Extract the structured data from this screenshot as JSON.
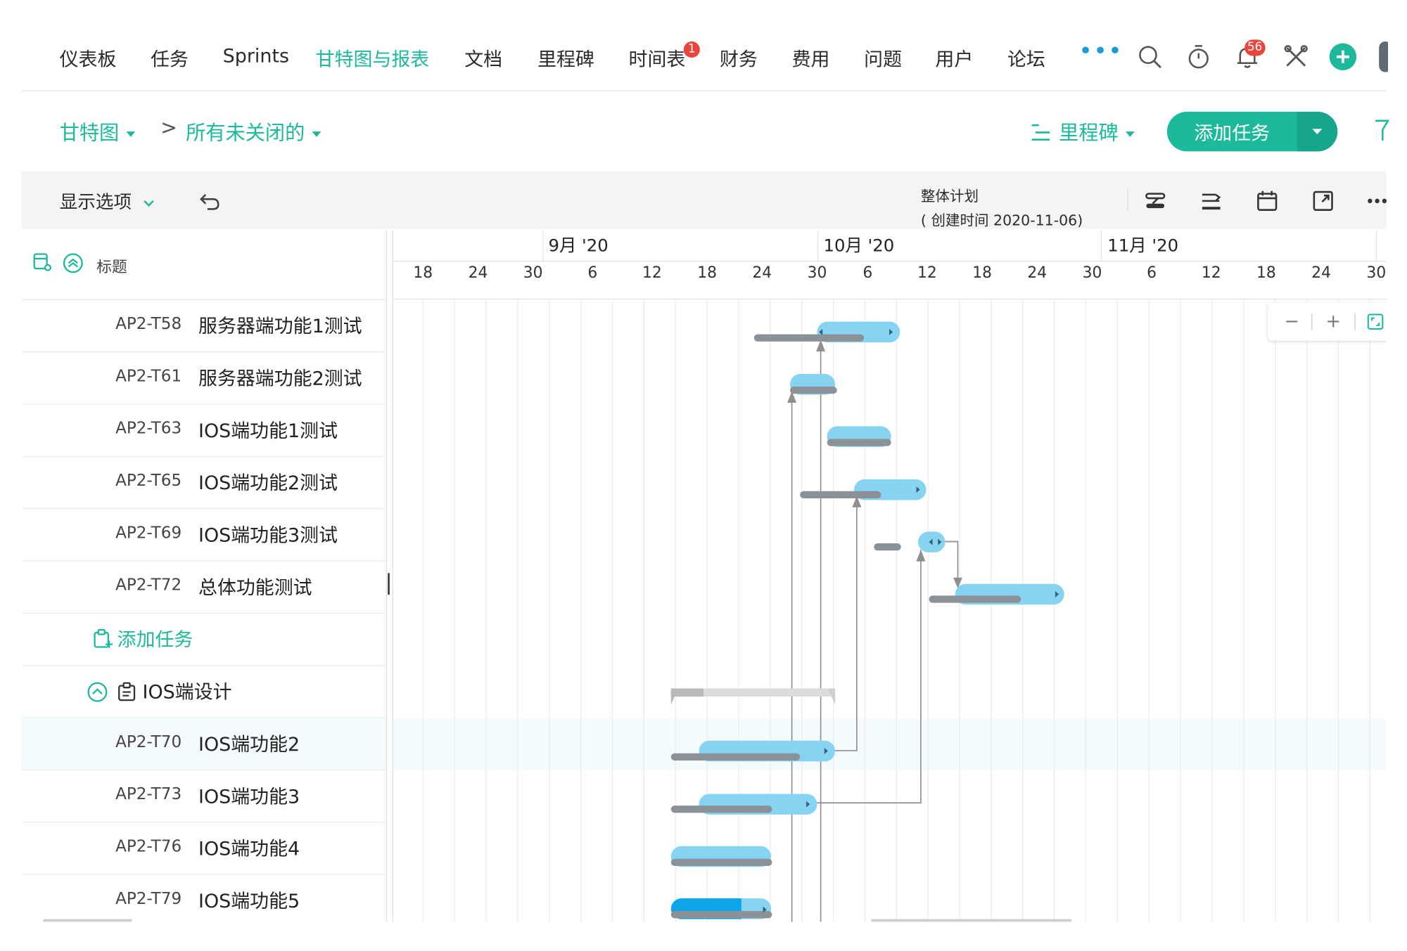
{
  "nav": {
    "items": [
      "仪表板",
      "任务",
      "Sprints",
      "甘特图与报表",
      "文档",
      "里程碑",
      "时间表",
      "财务",
      "费用",
      "问题",
      "用户",
      "论坛"
    ],
    "active": "甘特图与报表",
    "more": "•••",
    "timesheet_badge": "1",
    "notif_badge": "56"
  },
  "breadcrumb": {
    "view": "甘特图",
    "sep": ">",
    "filter": "所有未关闭的",
    "milestone": "里程碑",
    "add_task": "添加任务"
  },
  "toolbar": {
    "display_options": "显示选项",
    "plan_title": "整体计划",
    "plan_created": "( 创建时间 2020-11-06)"
  },
  "list": {
    "header_title": "标题",
    "add_task": "添加任务",
    "group": "IOS端设计",
    "tasks": [
      {
        "id": "AP2-T58",
        "name": "服务器端功能1测试"
      },
      {
        "id": "AP2-T61",
        "name": "服务器端功能2测试"
      },
      {
        "id": "AP2-T63",
        "name": "IOS端功能1测试"
      },
      {
        "id": "AP2-T65",
        "name": "IOS端功能2测试"
      },
      {
        "id": "AP2-T69",
        "name": "IOS端功能3测试"
      },
      {
        "id": "AP2-T72",
        "name": "总体功能测试"
      }
    ],
    "group_tasks": [
      {
        "id": "AP2-T70",
        "name": "IOS端功能2"
      },
      {
        "id": "AP2-T73",
        "name": "IOS端功能3"
      },
      {
        "id": "AP2-T76",
        "name": "IOS端功能4"
      },
      {
        "id": "AP2-T79",
        "name": "IOS端功能5"
      }
    ]
  },
  "timeline": {
    "months": [
      "9月 '20",
      "10月 '20",
      "11月 '20"
    ],
    "days": [
      "18",
      "24",
      "30",
      "6",
      "12",
      "18",
      "24",
      "30",
      "6",
      "12",
      "18",
      "24",
      "30",
      "6",
      "12",
      "18",
      "24",
      "30"
    ],
    "zoom_out": "−",
    "zoom_in": "+"
  },
  "colors": {
    "accent": "#1db99c",
    "bar": "#86d3f2",
    "baseline": "#8a9197",
    "progress": "#0ea5e9",
    "badge": "#e8453c"
  }
}
